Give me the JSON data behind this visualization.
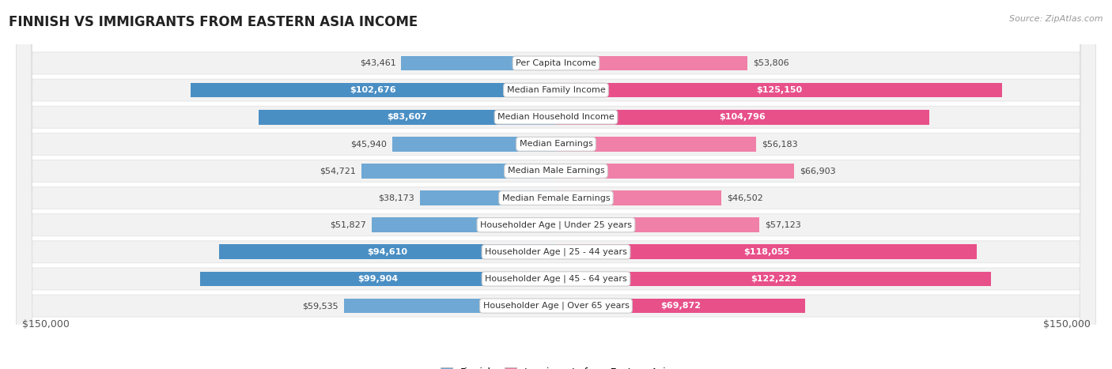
{
  "title": "FINNISH VS IMMIGRANTS FROM EASTERN ASIA INCOME",
  "source": "Source: ZipAtlas.com",
  "categories": [
    "Per Capita Income",
    "Median Family Income",
    "Median Household Income",
    "Median Earnings",
    "Median Male Earnings",
    "Median Female Earnings",
    "Householder Age | Under 25 years",
    "Householder Age | 25 - 44 years",
    "Householder Age | 45 - 64 years",
    "Householder Age | Over 65 years"
  ],
  "finnish_values": [
    43461,
    102676,
    83607,
    45940,
    54721,
    38173,
    51827,
    94610,
    99904,
    59535
  ],
  "immigrant_values": [
    53806,
    125150,
    104796,
    56183,
    66903,
    46502,
    57123,
    118055,
    122222,
    69872
  ],
  "finnish_labels": [
    "$43,461",
    "$102,676",
    "$83,607",
    "$45,940",
    "$54,721",
    "$38,173",
    "$51,827",
    "$94,610",
    "$99,904",
    "$59,535"
  ],
  "immigrant_labels": [
    "$53,806",
    "$125,150",
    "$104,796",
    "$56,183",
    "$66,903",
    "$46,502",
    "$57,123",
    "$118,055",
    "$122,222",
    "$69,872"
  ],
  "max_value": 150000,
  "finnish_color_light": "#aac4e0",
  "finnish_color_medium": "#6fa8d4",
  "finnish_color_dark": "#4a8fc4",
  "immigrant_color_light": "#f4b8cc",
  "immigrant_color_medium": "#f080a8",
  "immigrant_color_dark": "#e8508a",
  "label_bg_color": "#ffffff",
  "row_bg_color": "#f2f2f2",
  "bar_height": 0.55,
  "label_threshold": 0.45,
  "x_label_left": "$150,000",
  "x_label_right": "$150,000"
}
